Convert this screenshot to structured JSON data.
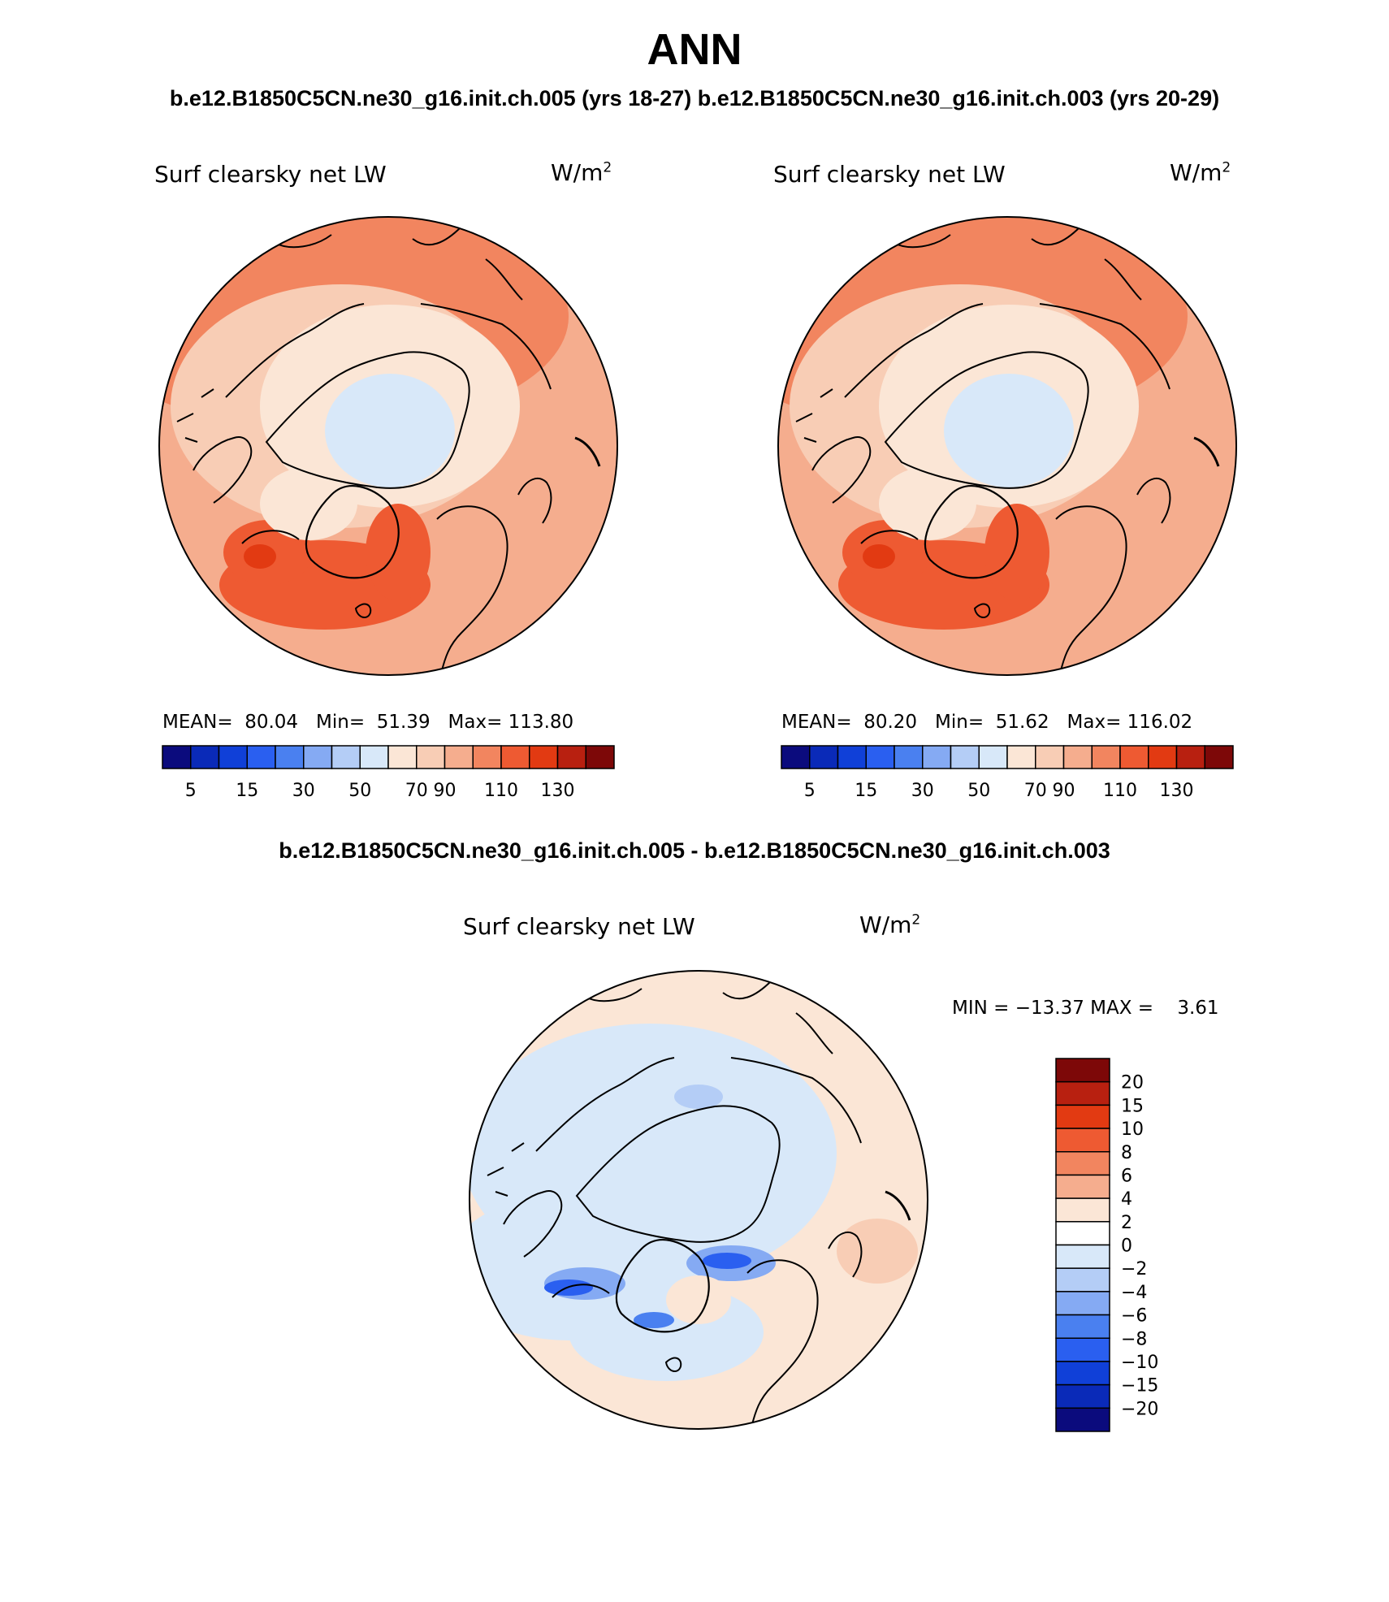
{
  "header": {
    "title": "ANN",
    "case_titles": "b.e12.B1850C5CN.ne30_g16.init.ch.005 (yrs 18-27) b.e12.B1850C5CN.ne30_g16.init.ch.003 (yrs 20-29)",
    "diff_title": "b.e12.B1850C5CN.ne30_g16.init.ch.005 - b.e12.B1850C5CN.ne30_g16.init.ch.003"
  },
  "panels": [
    {
      "variable": "Surf clearsky net LW",
      "units_base": "W/m",
      "units_exp": "2",
      "stats": {
        "mean_label": "MEAN=",
        "mean": "80.04",
        "min_label": "Min=",
        "min": "51.39",
        "max_label": "Max=",
        "max": "113.80"
      }
    },
    {
      "variable": "Surf clearsky net LW",
      "units_base": "W/m",
      "units_exp": "2",
      "stats": {
        "mean_label": "MEAN=",
        "mean": "80.20",
        "min_label": "Min=",
        "min": "51.62",
        "max_label": "Max=",
        "max": "116.02"
      }
    },
    {
      "variable": "Surf clearsky net LW",
      "units_base": "W/m",
      "units_exp": "2",
      "stats_line": "MIN = −13.37 MAX =    3.61"
    }
  ],
  "colorbars": {
    "absolute": {
      "colors": [
        "#0b0b7d",
        "#0a2ab8",
        "#1040d8",
        "#2a5ff0",
        "#4a80f0",
        "#85aaf3",
        "#b4cdf6",
        "#d8e8f9",
        "#fbe6d6",
        "#f8cdb5",
        "#f5ad8e",
        "#f2855f",
        "#ee5a32",
        "#e23a12",
        "#b82010",
        "#7d0808"
      ],
      "tick_labels": [
        "5",
        "15",
        "30",
        "50",
        "70",
        "90",
        "110",
        "130"
      ]
    },
    "difference": {
      "colors": [
        "#7d0808",
        "#b82010",
        "#e23a12",
        "#ee5a32",
        "#f2855f",
        "#f5ad8e",
        "#fbe6d6",
        "#ffffff",
        "#d8e8f9",
        "#b4cdf6",
        "#85aaf3",
        "#4a80f0",
        "#2a5ff0",
        "#1040d8",
        "#0a2ab8",
        "#0b0b7d"
      ],
      "tick_labels": [
        "20",
        "15",
        "10",
        "8",
        "6",
        "4",
        "2",
        "0",
        "−2",
        "−4",
        "−6",
        "−8",
        "−10",
        "−15",
        "−20"
      ]
    }
  }
}
